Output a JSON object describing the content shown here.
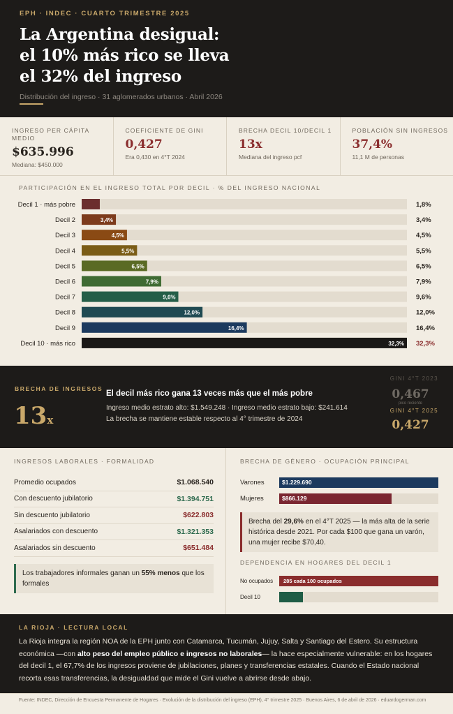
{
  "header": {
    "kicker": "EPH · INDEC · CUARTO TRIMESTRE 2025",
    "title_lines": [
      "La Argentina desigual:",
      "el 10% más rico se lleva",
      "el 32% del ingreso"
    ],
    "subtitle": "Distribución del ingreso · 31 aglomerados urbanos · Abril 2026"
  },
  "kpis": [
    {
      "label": "INGRESO PER CÁPITA MEDIO",
      "value": "$635.996",
      "sub": "Mediana: $450.000",
      "color": "#2a2520"
    },
    {
      "label": "COEFICIENTE DE GINI",
      "value": "0,427",
      "sub": "Era 0,430 en 4°T 2024",
      "color": "#8a2d2d"
    },
    {
      "label": "BRECHA DECIL 10/DECIL 1",
      "value": "13x",
      "sub": "Mediana del ingreso pcf",
      "color": "#8a2d2d"
    },
    {
      "label": "POBLACIÓN SIN INGRESOS",
      "value": "37,4%",
      "sub": "11,1 M de personas",
      "color": "#8a2d2d"
    }
  ],
  "chart_data": {
    "type": "bar",
    "orientation": "horizontal",
    "title": "PARTICIPACIÓN EN EL INGRESO TOTAL POR DECIL · % DEL INGRESO NACIONAL",
    "categories": [
      "Decil 1 · más pobre",
      "Decil 2",
      "Decil 3",
      "Decil 4",
      "Decil 5",
      "Decil 6",
      "Decil 7",
      "Decil 8",
      "Decil 9",
      "Decil 10 · más rico"
    ],
    "values": [
      1.8,
      3.4,
      4.5,
      5.5,
      6.5,
      7.9,
      9.6,
      12.0,
      16.4,
      32.3
    ],
    "labels": [
      "1,8%",
      "3,4%",
      "4,5%",
      "5,5%",
      "6,5%",
      "7,9%",
      "9,6%",
      "12,0%",
      "16,4%",
      "32,3%"
    ],
    "colors": [
      "#6b2e2e",
      "#7d3b1c",
      "#8a4a14",
      "#7a5c16",
      "#5a6a24",
      "#3f6b33",
      "#245e48",
      "#1f4a52",
      "#1c3a5e",
      "#1a1816"
    ],
    "xlim": [
      0,
      32.3
    ],
    "grid": false
  },
  "gap": {
    "kicker": "BRECHA DE INGRESOS",
    "big": "13",
    "big_suffix": "x",
    "headline": "El decil más rico gana 13 veces más que el más pobre",
    "line1": "Ingreso medio estrato alto: $1.549.248 · Ingreso medio estrato bajo: $241.614",
    "line2": "La brecha se mantiene estable respecto al 4° trimestre de 2024",
    "gini_old_label": "GINI 4°T 2023",
    "gini_old_value": "0,467",
    "gini_old_sub": "pico reciente",
    "gini_new_label": "GINI 4°T 2025",
    "gini_new_value": "0,427"
  },
  "labor": {
    "title": "INGRESOS LABORALES · FORMALIDAD",
    "rows": [
      {
        "label": "Promedio ocupados",
        "value": "$1.068.540",
        "tone": "dark"
      },
      {
        "label": "Con descuento jubilatorio",
        "value": "$1.394.751",
        "tone": "green"
      },
      {
        "label": "Sin descuento jubilatorio",
        "value": "$622.803",
        "tone": "red"
      },
      {
        "label": "Asalariados con descuento",
        "value": "$1.321.353",
        "tone": "green"
      },
      {
        "label": "Asalariados sin descuento",
        "value": "$651.484",
        "tone": "red"
      }
    ],
    "note_pre": "Los trabajadores informales ganan un ",
    "note_bold": "55% menos",
    "note_post": " que los formales"
  },
  "gender": {
    "title": "BRECHA DE GÉNERO · OCUPACIÓN PRINCIPAL",
    "rows": [
      {
        "label": "Varones",
        "value_label": "$1.229.690",
        "value": 1229690,
        "color": "#1c3a5e"
      },
      {
        "label": "Mujeres",
        "value_label": "$866.129",
        "value": 866129,
        "color": "#7a2630"
      }
    ],
    "note_pre": "Brecha del ",
    "note_bold": "29,6%",
    "note_post": " en el 4°T 2025 — la más alta de la serie histórica desde 2021. Por cada $100 que gana un varón, una mujer recibe $70,40."
  },
  "dependency": {
    "title": "DEPENDENCIA EN HOGARES DEL DECIL 1",
    "rows": [
      {
        "label": "No ocupados",
        "value_label": "285 cada 100 ocupados",
        "fraction": 1.0,
        "color": "#8a2d2d"
      },
      {
        "label": "Decil 10",
        "value_label": "",
        "fraction": 0.15,
        "color": "#1e5c45"
      }
    ]
  },
  "rioja": {
    "kicker": "LA RIOJA · LECTURA LOCAL",
    "t1": "La Rioja integra la región NOA de la EPH junto con Catamarca, Tucumán, Jujuy, Salta y Santiago del Estero. Su estructura económica —con ",
    "b1": "alto peso del empleo público e ingresos no laborales",
    "t2": "— la hace especialmente vulnerable: en los hogares del decil 1, el 67,7% de los ingresos proviene de jubilaciones, planes y transferencias estatales. Cuando el Estado nacional recorta esas transferencias, la desigualdad que mide el Gini vuelve a abrirse desde abajo."
  },
  "footer": {
    "text": "Fuente: INDEC, Dirección de Encuesta Permanente de Hogares · Evolución de la distribución del ingreso (EPH), 4° trimestre 2025 · Buenos Aires, 6 de abril de 2026 · eduardogerman.com"
  }
}
